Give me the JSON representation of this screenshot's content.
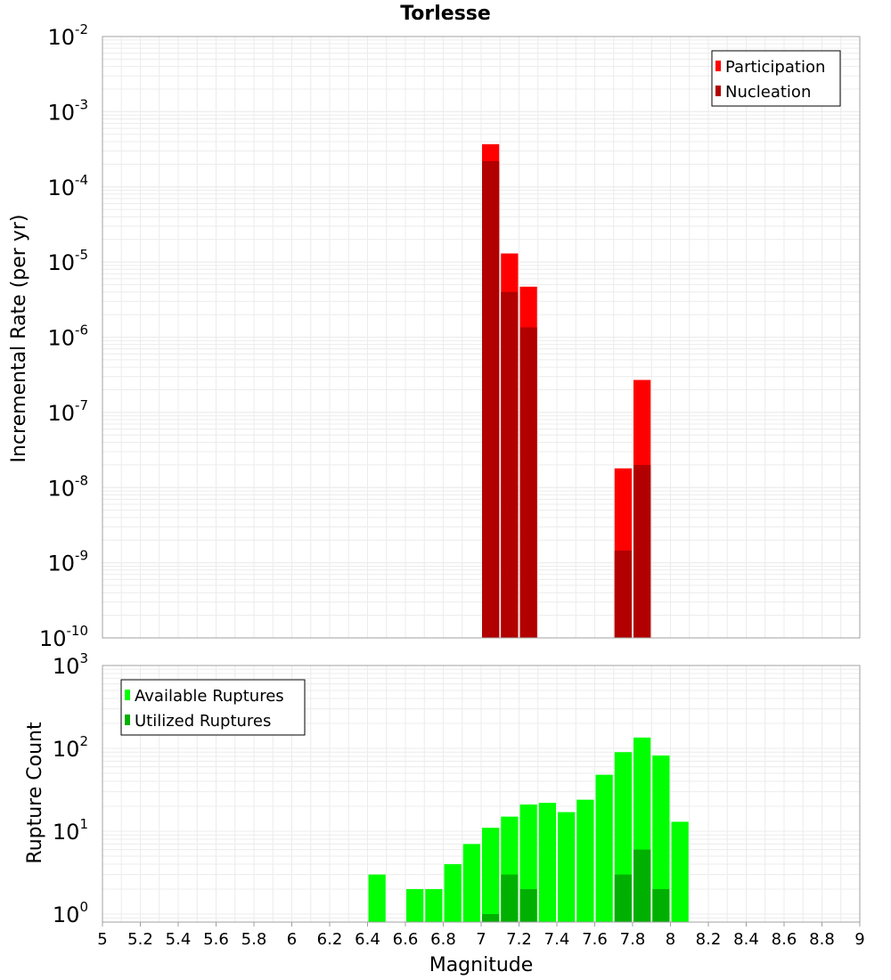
{
  "chart_data": [
    {
      "type": "bar",
      "title": "Torlesse",
      "ylabel": "Incremental Rate (per yr)",
      "xlabel": "",
      "y_scale": "log",
      "ylim": [
        1e-10,
        0.01
      ],
      "xlim": [
        5,
        9
      ],
      "grid": true,
      "legend_position": "top-right",
      "y_ticks": [
        {
          "base": "10",
          "exp": "-10"
        },
        {
          "base": "10",
          "exp": "-9"
        },
        {
          "base": "10",
          "exp": "-8"
        },
        {
          "base": "10",
          "exp": "-7"
        },
        {
          "base": "10",
          "exp": "-6"
        },
        {
          "base": "10",
          "exp": "-5"
        },
        {
          "base": "10",
          "exp": "-4"
        },
        {
          "base": "10",
          "exp": "-3"
        },
        {
          "base": "10",
          "exp": "-2"
        }
      ],
      "x": [
        7.05,
        7.15,
        7.25,
        7.75,
        7.85
      ],
      "series": [
        {
          "name": "Participation",
          "color": "#ff0000",
          "values": [
            0.00037,
            1.3e-05,
            4.7e-06,
            1.8e-08,
            2.7e-07
          ]
        },
        {
          "name": "Nucleation",
          "color": "#b20000",
          "values": [
            0.00022,
            4e-06,
            1.35e-06,
            1.45e-09,
            2e-08
          ]
        }
      ]
    },
    {
      "type": "bar",
      "title": "",
      "ylabel": "Rupture Count",
      "xlabel": "Magnitude",
      "y_scale": "log",
      "ylim": [
        0.8,
        1000
      ],
      "xlim": [
        5,
        9
      ],
      "grid": true,
      "legend_position": "top-left",
      "y_ticks": [
        {
          "base": "10",
          "exp": "0"
        },
        {
          "base": "10",
          "exp": "1"
        },
        {
          "base": "10",
          "exp": "2"
        },
        {
          "base": "10",
          "exp": "3"
        }
      ],
      "x_tick_labels": [
        "5",
        "5.2",
        "5.4",
        "5.6",
        "5.8",
        "6",
        "6.2",
        "6.4",
        "6.6",
        "6.8",
        "7",
        "7.2",
        "7.4",
        "7.6",
        "7.8",
        "8",
        "8.2",
        "8.4",
        "8.6",
        "8.8",
        "9"
      ],
      "x": [
        6.45,
        6.55,
        6.65,
        6.75,
        6.85,
        6.95,
        7.05,
        7.15,
        7.25,
        7.35,
        7.45,
        7.55,
        7.65,
        7.75,
        7.85,
        7.95,
        8.05
      ],
      "series": [
        {
          "name": "Available Ruptures",
          "color": "#00ff00",
          "values": [
            3,
            0,
            2,
            2,
            4,
            7,
            11,
            15,
            21,
            22,
            17,
            24,
            48,
            90,
            135,
            82,
            13
          ]
        },
        {
          "name": "Utilized Ruptures",
          "color": "#00b000",
          "values": [
            0,
            0,
            0,
            0,
            0,
            0,
            1,
            3,
            2,
            0,
            0,
            0,
            0,
            3,
            6,
            2,
            0
          ]
        }
      ]
    }
  ]
}
